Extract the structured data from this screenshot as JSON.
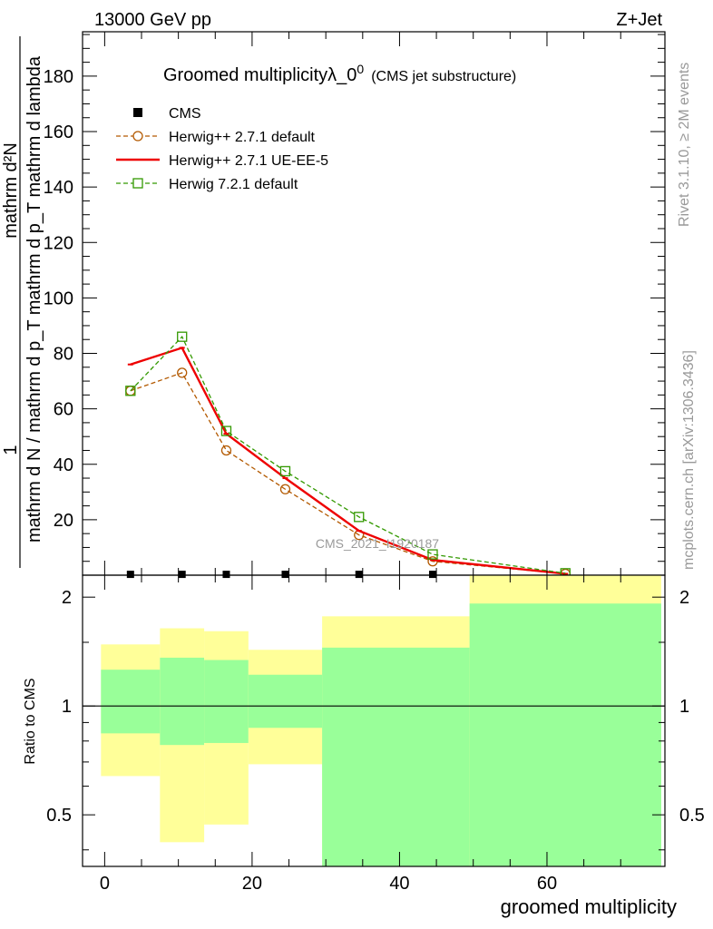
{
  "header": {
    "left": "13000 GeV pp",
    "right": "Z+Jet"
  },
  "side_labels": {
    "top": "Rivet 3.1.10, ≥ 2M events",
    "bottom": "mcplots.cern.ch [arXiv:1306.3436]"
  },
  "chart_data": [
    {
      "type": "line",
      "title": "Groomed multiplicityλ_0",
      "title_sup": "0",
      "subtitle": "(CMS jet substructure)",
      "xlabel": "groomed multiplicity",
      "ylabel_num": "1",
      "ylabel_den": "mathrm d N / mathrm d p_T mathrm d p_T mathrm d lambda",
      "ylabel_top": "mathrm d²N",
      "watermark": "CMS_2021_I1920187",
      "xlim": [
        -3,
        76
      ],
      "ylim": [
        0,
        196
      ],
      "x_ticks": [
        0,
        20,
        40,
        60
      ],
      "y_ticks": [
        20,
        40,
        60,
        80,
        100,
        120,
        140,
        160,
        180
      ],
      "legend": [
        {
          "label": "CMS",
          "color": "#000000",
          "marker": "square-filled"
        },
        {
          "label": "Herwig++ 2.7.1 default",
          "color": "#b35900",
          "marker": "circle"
        },
        {
          "label": "Herwig++ 2.7.1 UE-EE-5",
          "color": "#ee0000",
          "marker": "none"
        },
        {
          "label": "Herwig 7.2.1 default",
          "color": "#339900",
          "marker": "square"
        }
      ],
      "cms_points": [
        {
          "x": 3.5,
          "y": 0.3
        },
        {
          "x": 10.5,
          "y": 0.3
        },
        {
          "x": 16.5,
          "y": 0.3
        },
        {
          "x": 24.5,
          "y": 0.3
        },
        {
          "x": 34.5,
          "y": 0.3
        },
        {
          "x": 44.5,
          "y": 0.3
        }
      ],
      "series": [
        {
          "name": "Herwig++ 2.7.1 default",
          "color": "#b35900",
          "dashed": true,
          "marker": "circle",
          "x": [
            3.5,
            10.5,
            16.5,
            24.5,
            34.5,
            44.5,
            62.5
          ],
          "y": [
            66.5,
            73,
            45,
            31,
            14.5,
            5,
            0.5
          ]
        },
        {
          "name": "Herwig++ 2.7.1 UE-EE-5",
          "color": "#ee0000",
          "dashed": false,
          "marker": "none",
          "x": [
            3.5,
            10.5,
            16.5,
            24.5,
            34.5,
            44.5,
            62.5
          ],
          "y": [
            76,
            82,
            51,
            35,
            16,
            5.5,
            0.5
          ]
        },
        {
          "name": "Herwig 7.2.1 default",
          "color": "#339900",
          "dashed": true,
          "marker": "square",
          "x": [
            3.5,
            10.5,
            16.5,
            24.5,
            34.5,
            44.5,
            62.5
          ],
          "y": [
            66.5,
            86,
            52,
            37.5,
            21,
            7.5,
            0.7
          ]
        }
      ]
    },
    {
      "type": "area",
      "ylabel": "Ratio to CMS",
      "xlabel": "groomed multiplicity",
      "xlim": [
        -3,
        76
      ],
      "ylim": [
        0.36,
        2.3
      ],
      "y_ticks": [
        0.5,
        1,
        2
      ],
      "y_tick_labels": [
        "0.5",
        "1",
        "2"
      ],
      "x_ticks": [
        0,
        20,
        40,
        60
      ],
      "reference_line": 1,
      "bands": [
        {
          "x0": -0.5,
          "x1": 7.5,
          "green": [
            0.84,
            1.26
          ],
          "yellow": [
            0.64,
            1.48
          ]
        },
        {
          "x0": 7.5,
          "x1": 13.5,
          "green": [
            0.78,
            1.36
          ],
          "yellow": [
            0.42,
            1.64
          ]
        },
        {
          "x0": 13.5,
          "x1": 19.5,
          "green": [
            0.79,
            1.34
          ],
          "yellow": [
            0.47,
            1.61
          ]
        },
        {
          "x0": 19.5,
          "x1": 29.5,
          "green": [
            0.87,
            1.22
          ],
          "yellow": [
            0.69,
            1.43
          ]
        },
        {
          "x0": 29.5,
          "x1": 49.5,
          "green": [
            0.36,
            1.45
          ],
          "yellow": [
            0.36,
            1.77
          ]
        },
        {
          "x0": 49.5,
          "x1": 75.5,
          "green": [
            0.36,
            1.92
          ],
          "yellow": [
            0.36,
            2.3
          ]
        }
      ]
    }
  ],
  "colors": {
    "green_band": "#99ff99",
    "yellow_band": "#ffff99"
  }
}
